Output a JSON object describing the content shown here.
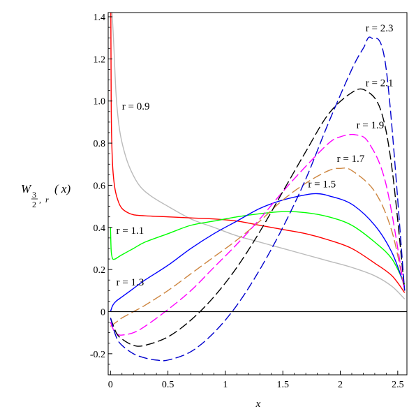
{
  "chart_data": {
    "type": "line",
    "title": "",
    "xlabel": "x",
    "ylabel": {
      "main": "W",
      "sub_num": "3",
      "sub_den": "2",
      "sub_sep": ",",
      "sub_r": "r",
      "arg": "( x)"
    },
    "xlim": [
      -0.02,
      2.58
    ],
    "ylim": [
      -0.3,
      1.42
    ],
    "x_ticks": [
      {
        "value": 0,
        "label": "0"
      },
      {
        "value": 0.5,
        "label": "0.5"
      },
      {
        "value": 1,
        "label": "1"
      },
      {
        "value": 1.5,
        "label": "1.5"
      },
      {
        "value": 2,
        "label": "2"
      },
      {
        "value": 2.5,
        "label": "2.5"
      }
    ],
    "y_ticks": [
      {
        "value": -0.2,
        "label": "-0.2"
      },
      {
        "value": 0,
        "label": "0"
      },
      {
        "value": 0.2,
        "label": "0.2"
      },
      {
        "value": 0.4,
        "label": "0.4"
      },
      {
        "value": 0.6,
        "label": "0.6"
      },
      {
        "value": 0.8,
        "label": "0.8"
      },
      {
        "value": 1.0,
        "label": "1.0"
      },
      {
        "value": 1.2,
        "label": "1.2"
      },
      {
        "value": 1.4,
        "label": "1.4"
      }
    ],
    "grid": false,
    "reference_line": {
      "y": 0,
      "color": "#000000"
    },
    "series": [
      {
        "name": "r = 0.9",
        "color": "#bbbbbb",
        "style": "solid",
        "label_at": [
          0.1,
          0.96
        ],
        "x": [
          0.005,
          0.01,
          0.02,
          0.03,
          0.05,
          0.08,
          0.12,
          0.17,
          0.25,
          0.35,
          0.5,
          0.7,
          0.9,
          1.1,
          1.3,
          1.5,
          1.7,
          1.9,
          2.1,
          2.3,
          2.45,
          2.56
        ],
        "y": [
          1.5,
          1.45,
          1.36,
          1.25,
          1.02,
          0.86,
          0.76,
          0.68,
          0.6,
          0.55,
          0.5,
          0.44,
          0.4,
          0.36,
          0.33,
          0.3,
          0.27,
          0.24,
          0.21,
          0.17,
          0.12,
          0.06
        ]
      },
      {
        "name": "r = 1.1",
        "color": "#ff0000",
        "style": "solid",
        "label_at": [
          0.05,
          0.37
        ],
        "x": [
          0.0,
          0.003,
          0.006,
          0.01,
          0.02,
          0.04,
          0.07,
          0.1,
          0.15,
          0.2,
          0.3,
          0.5,
          0.7,
          0.9,
          1.1,
          1.3,
          1.5,
          1.7,
          1.9,
          2.1,
          2.3,
          2.45,
          2.56
        ],
        "y": [
          1.42,
          1.42,
          1.0,
          0.83,
          0.68,
          0.58,
          0.52,
          0.49,
          0.47,
          0.46,
          0.455,
          0.45,
          0.445,
          0.44,
          0.43,
          0.41,
          0.39,
          0.37,
          0.34,
          0.3,
          0.23,
          0.17,
          0.09
        ]
      },
      {
        "name": "r = 1.3",
        "color": "#00ff00",
        "style": "solid",
        "label_at": [
          0.05,
          0.125
        ],
        "x": [
          0.0,
          0.005,
          0.01,
          0.02,
          0.04,
          0.07,
          0.1,
          0.2,
          0.3,
          0.5,
          0.7,
          0.9,
          1.1,
          1.3,
          1.5,
          1.7,
          1.9,
          2.1,
          2.3,
          2.45,
          2.56
        ],
        "y": [
          0.4,
          0.3,
          0.27,
          0.25,
          0.25,
          0.26,
          0.27,
          0.3,
          0.33,
          0.37,
          0.41,
          0.43,
          0.45,
          0.465,
          0.475,
          0.47,
          0.45,
          0.41,
          0.33,
          0.25,
          0.13
        ]
      },
      {
        "name": "r = 1.5",
        "color": "#0000ff",
        "style": "solid",
        "label_at": [
          1.72,
          0.59
        ],
        "x": [
          0.0,
          0.02,
          0.05,
          0.1,
          0.2,
          0.3,
          0.5,
          0.7,
          0.9,
          1.1,
          1.3,
          1.5,
          1.7,
          1.8,
          1.9,
          2.1,
          2.3,
          2.45,
          2.56
        ],
        "y": [
          0.0,
          0.03,
          0.05,
          0.07,
          0.11,
          0.15,
          0.22,
          0.3,
          0.37,
          0.43,
          0.49,
          0.53,
          0.555,
          0.56,
          0.55,
          0.51,
          0.41,
          0.28,
          0.12
        ]
      },
      {
        "name": "r = 1.7",
        "color": "#cd853f",
        "style": "dash",
        "label_at": [
          1.97,
          0.71
        ],
        "x": [
          0.0,
          0.05,
          0.1,
          0.2,
          0.3,
          0.5,
          0.7,
          0.9,
          1.1,
          1.3,
          1.5,
          1.7,
          1.9,
          2.0,
          2.1,
          2.3,
          2.45,
          2.56
        ],
        "y": [
          -0.07,
          -0.05,
          -0.03,
          0.0,
          0.03,
          0.1,
          0.18,
          0.26,
          0.34,
          0.43,
          0.53,
          0.61,
          0.67,
          0.68,
          0.67,
          0.57,
          0.38,
          0.1
        ]
      },
      {
        "name": "r = 1.9",
        "color": "#ff00ff",
        "style": "dash",
        "label_at": [
          2.14,
          0.87
        ],
        "x": [
          0.0,
          0.03,
          0.07,
          0.12,
          0.2,
          0.3,
          0.5,
          0.7,
          0.9,
          1.1,
          1.3,
          1.5,
          1.7,
          1.9,
          2.0,
          2.13,
          2.25,
          2.4,
          2.56
        ],
        "y": [
          -0.05,
          -0.09,
          -0.11,
          -0.11,
          -0.1,
          -0.07,
          0.01,
          0.1,
          0.21,
          0.32,
          0.44,
          0.57,
          0.69,
          0.8,
          0.83,
          0.84,
          0.8,
          0.6,
          0.1
        ]
      },
      {
        "name": "r = 2.1",
        "color": "#000000",
        "style": "dash",
        "label_at": [
          2.22,
          1.07
        ],
        "x": [
          0.0,
          0.05,
          0.1,
          0.2,
          0.3,
          0.5,
          0.7,
          0.9,
          1.1,
          1.3,
          1.5,
          1.7,
          1.9,
          2.1,
          2.22,
          2.35,
          2.45,
          2.56
        ],
        "y": [
          -0.03,
          -0.1,
          -0.13,
          -0.16,
          -0.16,
          -0.12,
          -0.04,
          0.07,
          0.21,
          0.38,
          0.57,
          0.76,
          0.94,
          1.04,
          1.05,
          0.96,
          0.68,
          0.1
        ]
      },
      {
        "name": "r = 2.3",
        "color": "#0000cd",
        "style": "dash",
        "label_at": [
          2.22,
          1.33
        ],
        "x": [
          0.0,
          0.05,
          0.1,
          0.2,
          0.3,
          0.4,
          0.5,
          0.7,
          0.9,
          1.1,
          1.3,
          1.5,
          1.7,
          1.9,
          2.1,
          2.2,
          2.27,
          2.4,
          2.56
        ],
        "y": [
          -0.03,
          -0.12,
          -0.16,
          -0.2,
          -0.22,
          -0.23,
          -0.23,
          -0.19,
          -0.1,
          0.03,
          0.2,
          0.4,
          0.63,
          0.9,
          1.15,
          1.25,
          1.3,
          1.15,
          0.1
        ]
      }
    ]
  }
}
